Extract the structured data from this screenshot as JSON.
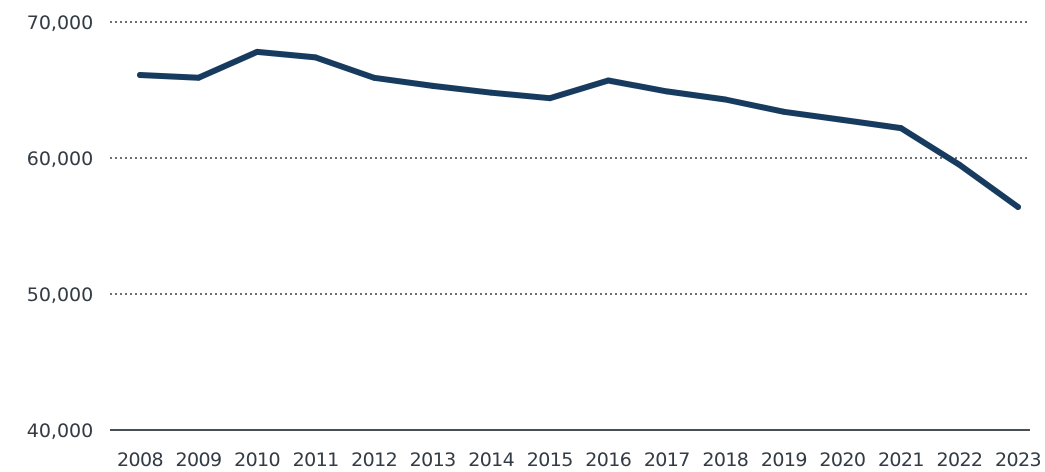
{
  "chart_data": {
    "type": "line",
    "title": "",
    "xlabel": "",
    "ylabel": "",
    "ylim": [
      40000,
      70000
    ],
    "y_ticks": [
      "40,000",
      "50,000",
      "60,000",
      "70,000"
    ],
    "y_tick_values": [
      40000,
      50000,
      60000,
      70000
    ],
    "categories": [
      "2008",
      "2009",
      "2010",
      "2011",
      "2012",
      "2013",
      "2014",
      "2015",
      "2016",
      "2017",
      "2018",
      "2019",
      "2020",
      "2021",
      "2022",
      "2023"
    ],
    "series": [
      {
        "values": [
          66100,
          65900,
          67800,
          67400,
          65900,
          65300,
          64800,
          64400,
          65700,
          64900,
          64300,
          63400,
          62800,
          62200,
          59500,
          56400
        ],
        "color": "#173b5e"
      }
    ],
    "grid": "horizontal-dotted",
    "legend": "none"
  }
}
